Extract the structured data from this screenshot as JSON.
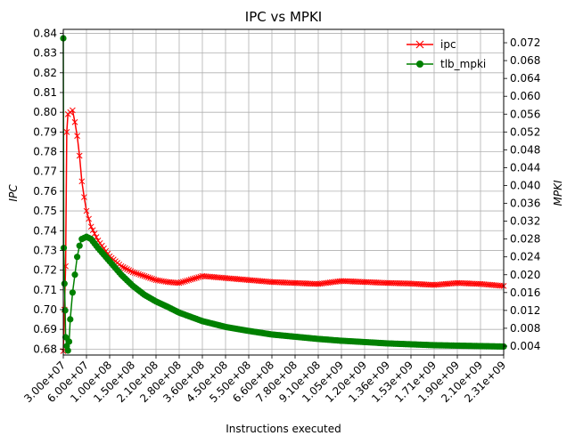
{
  "chart_data": {
    "type": "line",
    "title": "IPC vs MPKI",
    "xlabel": "Instructions executed",
    "ylabel_left": "IPC",
    "ylabel_right": "MPKI",
    "x_tick_labels": [
      "3.00e+07",
      "6.00e+07",
      "1.00e+08",
      "1.50e+08",
      "2.10e+08",
      "2.80e+08",
      "3.60e+08",
      "4.50e+08",
      "5.50e+08",
      "6.60e+08",
      "7.80e+08",
      "9.10e+08",
      "1.05e+09",
      "1.20e+09",
      "1.36e+09",
      "1.53e+09",
      "1.71e+09",
      "1.90e+09",
      "2.10e+09",
      "2.31e+09"
    ],
    "y_left_ticks": [
      "0.68",
      "0.69",
      "0.70",
      "0.71",
      "0.72",
      "0.73",
      "0.74",
      "0.75",
      "0.76",
      "0.77",
      "0.78",
      "0.79",
      "0.80",
      "0.81",
      "0.82",
      "0.83",
      "0.84"
    ],
    "y_right_ticks": [
      "0.004",
      "0.008",
      "0.012",
      "0.016",
      "0.020",
      "0.024",
      "0.028",
      "0.032",
      "0.036",
      "0.040",
      "0.044",
      "0.048",
      "0.052",
      "0.056",
      "0.060",
      "0.064",
      "0.068",
      "0.072"
    ],
    "ylim_left": [
      0.677,
      0.842
    ],
    "ylim_right": [
      0.002,
      0.075
    ],
    "grid": true,
    "legend_position": "top-right",
    "series": [
      {
        "name": "ipc",
        "axis": "left",
        "color": "#ff0000",
        "marker": "x",
        "x_ticks": [
          0.0,
          0.05,
          0.1,
          0.15,
          0.2,
          0.3,
          0.4,
          0.5,
          0.6,
          0.7,
          0.8,
          0.9,
          1.0,
          1.2,
          1.5,
          2,
          2.5,
          3,
          3.5,
          4,
          4.5,
          5,
          6,
          7,
          8,
          9,
          10,
          11,
          12,
          13,
          14,
          15,
          16,
          17,
          18,
          19
        ],
        "y": [
          0.679,
          0.7,
          0.722,
          0.79,
          0.799,
          0.8,
          0.801,
          0.795,
          0.788,
          0.778,
          0.765,
          0.757,
          0.75,
          0.742,
          0.735,
          0.727,
          0.722,
          0.719,
          0.717,
          0.715,
          0.714,
          0.7135,
          0.717,
          0.716,
          0.715,
          0.714,
          0.7135,
          0.713,
          0.7145,
          0.714,
          0.7135,
          0.7132,
          0.7125,
          0.7135,
          0.713,
          0.712
        ]
      },
      {
        "name": "tlb_mpki",
        "axis": "right",
        "color": "#008000",
        "marker": "o",
        "x_ticks": [
          0.0,
          0.02,
          0.05,
          0.08,
          0.1,
          0.15,
          0.2,
          0.25,
          0.3,
          0.4,
          0.5,
          0.6,
          0.7,
          0.8,
          1.0,
          1.2,
          1.5,
          2,
          2.5,
          3,
          3.5,
          4,
          4.5,
          5,
          6,
          7,
          8,
          9,
          10,
          11,
          12,
          13,
          14,
          15,
          16,
          17,
          18,
          19
        ],
        "y": [
          0.073,
          0.026,
          0.018,
          0.012,
          0.006,
          0.004,
          0.003,
          0.005,
          0.01,
          0.016,
          0.02,
          0.024,
          0.0265,
          0.028,
          0.0285,
          0.028,
          0.026,
          0.023,
          0.02,
          0.0175,
          0.0155,
          0.014,
          0.0128,
          0.0115,
          0.0096,
          0.0083,
          0.0074,
          0.0066,
          0.0061,
          0.0056,
          0.0052,
          0.0049,
          0.0046,
          0.0044,
          0.0042,
          0.0041,
          0.004,
          0.0039
        ]
      }
    ]
  }
}
